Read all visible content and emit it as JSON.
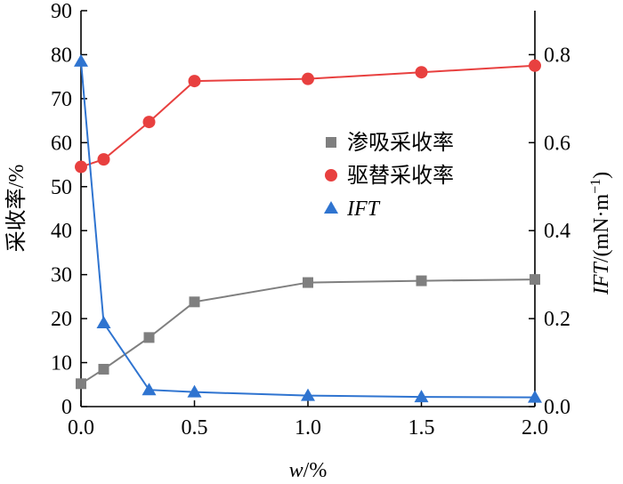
{
  "chart_data": {
    "type": "line",
    "x_axis": {
      "label_var": "w",
      "label_unit": "/%",
      "range": [
        0,
        2.0
      ],
      "ticks": [
        "0.0",
        "0.5",
        "1.0",
        "1.5",
        "2.0"
      ]
    },
    "y_left": {
      "label": "采收率/%",
      "range": [
        0,
        90
      ],
      "ticks": [
        "0",
        "10",
        "20",
        "30",
        "40",
        "50",
        "60",
        "70",
        "80",
        "90"
      ]
    },
    "y_right": {
      "label_var": "IFT",
      "label_unit": "/(mN·m",
      "label_exp": "−1",
      "label_close": ")",
      "range": [
        0,
        0.9
      ],
      "ticks": [
        "0.0",
        "0.2",
        "0.4",
        "0.6",
        "0.8"
      ]
    },
    "series": [
      {
        "name": "渗吸采收率",
        "axis": "left",
        "marker": "square",
        "color": "#7f7f7f",
        "x": [
          0,
          0.1,
          0.3,
          0.5,
          1.0,
          1.5,
          2.0
        ],
        "y": [
          5.2,
          8.5,
          15.7,
          23.8,
          28.2,
          28.6,
          28.9
        ]
      },
      {
        "name": "驱替采收率",
        "axis": "left",
        "marker": "circle",
        "color": "#e8403f",
        "x": [
          0,
          0.1,
          0.3,
          0.5,
          1.0,
          1.5,
          2.0
        ],
        "y": [
          54.5,
          56.2,
          64.7,
          74.0,
          74.5,
          76.0,
          77.5
        ]
      },
      {
        "name": "IFT",
        "axis": "right",
        "marker": "triangle",
        "color": "#2f74d0",
        "x": [
          0,
          0.1,
          0.3,
          0.5,
          1.0,
          1.5,
          2.0
        ],
        "y": [
          0.785,
          0.19,
          0.038,
          0.033,
          0.025,
          0.022,
          0.021
        ]
      }
    ],
    "legend_position": "center-right",
    "grid": false
  }
}
